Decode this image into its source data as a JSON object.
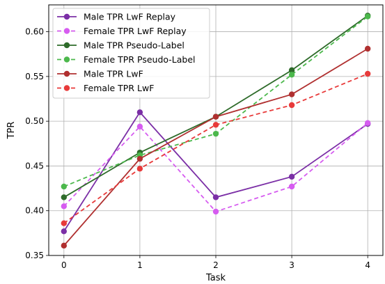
{
  "chart_data": {
    "type": "line",
    "title": "",
    "xlabel": "Task",
    "ylabel": "TPR",
    "x": [
      0,
      1,
      2,
      3,
      4
    ],
    "x_ticks": [
      "0",
      "1",
      "2",
      "3",
      "4"
    ],
    "y_ticks": [
      "0.35",
      "0.40",
      "0.45",
      "0.50",
      "0.55",
      "0.60"
    ],
    "xlim": [
      -0.2,
      4.2
    ],
    "ylim": [
      0.35,
      0.63
    ],
    "grid": true,
    "legend_position": "top-left",
    "series": [
      {
        "name": "Male TPR LwF Replay",
        "color": "#7b2fa6",
        "dash": "solid",
        "values": [
          0.377,
          0.51,
          0.415,
          0.438,
          0.497
        ]
      },
      {
        "name": "Female TPR LwF Replay",
        "color": "#d65cf0",
        "dash": "dashed",
        "values": [
          0.405,
          0.494,
          0.399,
          0.427,
          0.498
        ]
      },
      {
        "name": "Male TPR Pseudo-Label",
        "color": "#2e6b2a",
        "dash": "solid",
        "values": [
          0.415,
          0.465,
          0.505,
          0.557,
          0.618
        ]
      },
      {
        "name": "Female TPR Pseudo-Label",
        "color": "#4cb84c",
        "dash": "dashed",
        "values": [
          0.427,
          0.462,
          0.486,
          0.552,
          0.617
        ]
      },
      {
        "name": "Male TPR LwF",
        "color": "#b03030",
        "dash": "solid",
        "values": [
          0.361,
          0.458,
          0.505,
          0.53,
          0.581
        ]
      },
      {
        "name": "Female TPR LwF",
        "color": "#e83a3a",
        "dash": "dashed",
        "values": [
          0.386,
          0.447,
          0.496,
          0.518,
          0.553
        ]
      }
    ]
  }
}
